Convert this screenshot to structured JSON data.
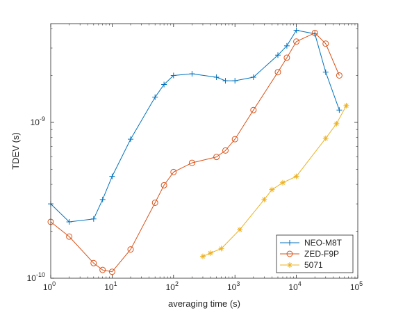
{
  "chart_data": {
    "type": "line",
    "xscale": "log",
    "yscale": "log",
    "xlabel": "averaging time (s)",
    "ylabel": "TDEV (s)",
    "xlim": [
      1,
      100000
    ],
    "ylim": [
      1e-10,
      4.3e-09
    ],
    "x_ticks": [
      {
        "value": 1,
        "base": "10",
        "exp": "0"
      },
      {
        "value": 10,
        "base": "10",
        "exp": "1"
      },
      {
        "value": 100,
        "base": "10",
        "exp": "2"
      },
      {
        "value": 1000,
        "base": "10",
        "exp": "3"
      },
      {
        "value": 10000,
        "base": "10",
        "exp": "4"
      },
      {
        "value": 100000,
        "base": "10",
        "exp": "5"
      }
    ],
    "y_ticks": [
      {
        "value": 1e-10,
        "base": "10",
        "exp": "-10"
      },
      {
        "value": 1e-09,
        "base": "10",
        "exp": "-9"
      }
    ],
    "grid": false,
    "legend_position": "bottom-right",
    "series": [
      {
        "name": "NEO-M8T",
        "color": "#0072BD",
        "marker": "plus",
        "x": [
          1,
          2,
          5,
          7,
          10,
          20,
          50,
          70,
          100,
          200,
          500,
          700,
          1000,
          2000,
          5000,
          7000,
          10000,
          20000,
          30000,
          50000
        ],
        "y": [
          3e-10,
          2.3e-10,
          2.4e-10,
          3.2e-10,
          4.5e-10,
          7.8e-10,
          1.45e-09,
          1.75e-09,
          2e-09,
          2.05e-09,
          1.95e-09,
          1.85e-09,
          1.85e-09,
          1.95e-09,
          2.7e-09,
          3.1e-09,
          3.9e-09,
          3.7e-09,
          2.1e-09,
          1.2e-09
        ]
      },
      {
        "name": "ZED-F9P",
        "color": "#D95319",
        "marker": "circle",
        "x": [
          1,
          2,
          5,
          7,
          10,
          20,
          50,
          70,
          100,
          200,
          500,
          700,
          1000,
          2000,
          5000,
          7000,
          10000,
          20000,
          30000,
          50000
        ],
        "y": [
          2.3e-10,
          1.85e-10,
          1.25e-10,
          1.13e-10,
          1.1e-10,
          1.53e-10,
          3.05e-10,
          3.95e-10,
          4.8e-10,
          5.5e-10,
          6e-10,
          6.6e-10,
          7.8e-10,
          1.2e-09,
          2.1e-09,
          2.6e-09,
          3.3e-09,
          3.75e-09,
          3.2e-09,
          2e-09
        ]
      },
      {
        "name": "5071",
        "color": "#EDB120",
        "marker": "asterisk",
        "x": [
          300,
          400,
          600,
          1200,
          3000,
          4000,
          6000,
          10000,
          30000,
          45000,
          65000
        ],
        "y": [
          1.38e-10,
          1.45e-10,
          1.55e-10,
          2.05e-10,
          3.2e-10,
          3.7e-10,
          4.1e-10,
          4.5e-10,
          7.9e-10,
          9.8e-10,
          1.28e-09
        ]
      }
    ]
  }
}
